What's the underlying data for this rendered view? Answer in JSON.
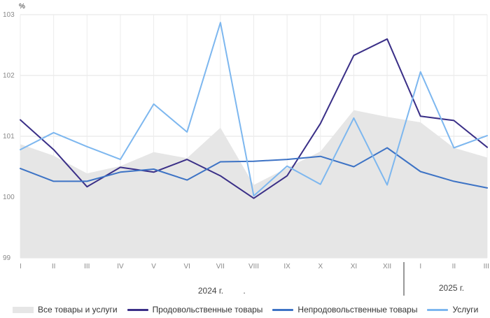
{
  "chart_data": {
    "type": "line",
    "y_unit": "%",
    "ylim": [
      99,
      103
    ],
    "y_ticks": [
      "99",
      "100",
      "101",
      "102",
      "103"
    ],
    "categories": [
      "I",
      "II",
      "III",
      "IV",
      "V",
      "VI",
      "VII",
      "VIII",
      "IX",
      "X",
      "XI",
      "XII",
      "I",
      "II",
      "III"
    ],
    "year_labels": [
      "2024 г.",
      "2025 г."
    ],
    "stray_mark": ".",
    "grid": true,
    "legend_position": "bottom",
    "series": [
      {
        "name": "Все товары и услуги",
        "style": "area",
        "color": "#e6e6e6",
        "values": [
          100.87,
          100.68,
          100.39,
          100.51,
          100.74,
          100.64,
          101.14,
          100.2,
          100.48,
          100.75,
          101.43,
          101.32,
          101.23,
          100.81,
          100.65
        ]
      },
      {
        "name": "Продовольственные товары",
        "style": "line",
        "color": "#3a2f87",
        "values": [
          101.27,
          100.78,
          100.17,
          100.49,
          100.41,
          100.62,
          100.35,
          99.98,
          100.35,
          101.21,
          102.33,
          102.6,
          101.33,
          101.26,
          100.82
        ]
      },
      {
        "name": "Непродовольственные товары",
        "style": "line",
        "color": "#3d73c5",
        "values": [
          100.47,
          100.26,
          100.26,
          100.41,
          100.46,
          100.28,
          100.58,
          100.59,
          100.62,
          100.67,
          100.5,
          100.81,
          100.42,
          100.26,
          100.15
        ]
      },
      {
        "name": "Услуги",
        "style": "line",
        "color": "#7db7ef",
        "values": [
          100.78,
          101.06,
          100.83,
          100.62,
          101.53,
          101.07,
          102.87,
          100.02,
          100.51,
          100.21,
          101.3,
          100.2,
          102.06,
          100.81,
          101.01
        ]
      }
    ]
  }
}
